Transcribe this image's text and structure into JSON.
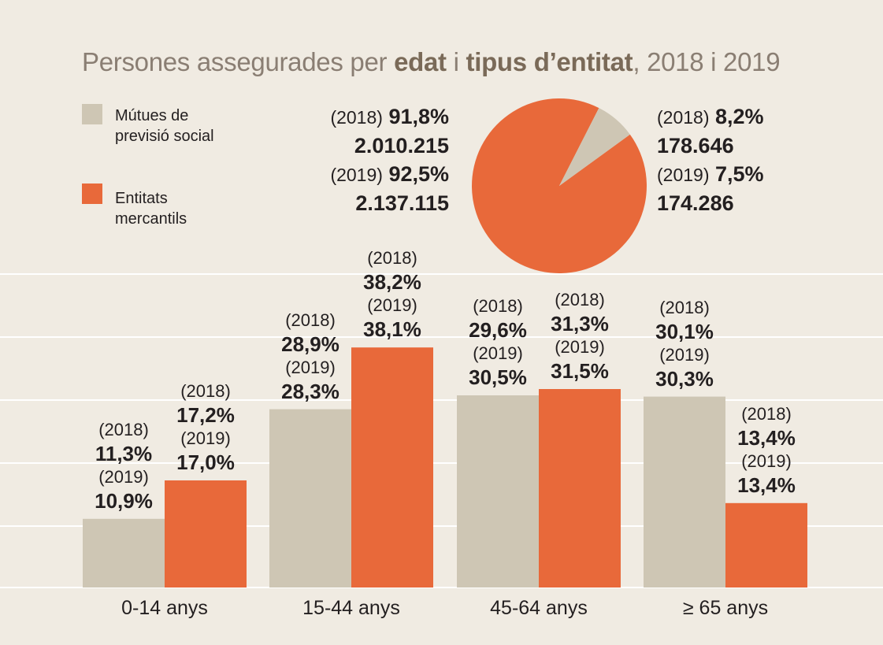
{
  "title": {
    "part1": "Persones assegurades per ",
    "bold1": "edat",
    "part2": " i ",
    "bold2": "tipus d’entitat",
    "part3": ", 2018 i 2019"
  },
  "colors": {
    "background": "#f0ebe2",
    "mutues": "#cec6b4",
    "mercantils": "#e8693a",
    "grid": "#ffffff"
  },
  "legend": [
    {
      "label": "Mútues de previsió social",
      "color": "#cec6b4"
    },
    {
      "label": "Entitats mercantils",
      "color": "#e8693a"
    }
  ],
  "pie": {
    "mercantils": {
      "y2018_year": "(2018)",
      "y2018_pct": "91,8%",
      "y2018_count": "2.010.215",
      "y2019_year": "(2019)",
      "y2019_pct": "92,5%",
      "y2019_count": "2.137.115"
    },
    "mutues": {
      "y2018_year": "(2018)",
      "y2018_pct": "8,2%",
      "y2018_count": "178.646",
      "y2019_year": "(2019)",
      "y2019_pct": "7,5%",
      "y2019_count": "174.286"
    }
  },
  "chart_data": [
    {
      "type": "pie",
      "slices": [
        {
          "label": "Entitats mercantils",
          "value_2018": 91.8,
          "count_2018": 2010215,
          "value_2019": 92.5,
          "count_2019": 2137115
        },
        {
          "label": "Mútues de previsió social",
          "value_2018": 8.2,
          "count_2018": 178646,
          "value_2019": 7.5,
          "count_2019": 174286
        }
      ]
    },
    {
      "type": "bar",
      "categories": [
        "0-14 anys",
        "15-44 anys",
        "45-64 anys",
        "≥ 65 anys"
      ],
      "series": [
        {
          "name": "Mútues de previsió social",
          "values_2018": [
            11.3,
            28.9,
            29.6,
            30.1
          ],
          "values_2019": [
            10.9,
            28.3,
            30.5,
            30.3
          ],
          "labels_2018": [
            "11,3%",
            "28,9%",
            "29,6%",
            "30,1%"
          ],
          "labels_2019": [
            "10,9%",
            "28,3%",
            "30,5%",
            "30,3%"
          ]
        },
        {
          "name": "Entitats mercantils",
          "values_2018": [
            17.2,
            38.2,
            31.3,
            13.4
          ],
          "values_2019": [
            17.0,
            38.1,
            31.5,
            13.4
          ],
          "labels_2018": [
            "17,2%",
            "38,2%",
            "31,3%",
            "13,4%"
          ],
          "labels_2019": [
            "17,0%",
            "38,1%",
            "31,5%",
            "13,4%"
          ]
        }
      ],
      "year_2018": "(2018)",
      "year_2019": "(2019)",
      "ylim": [
        0,
        45
      ],
      "grid": true
    }
  ]
}
